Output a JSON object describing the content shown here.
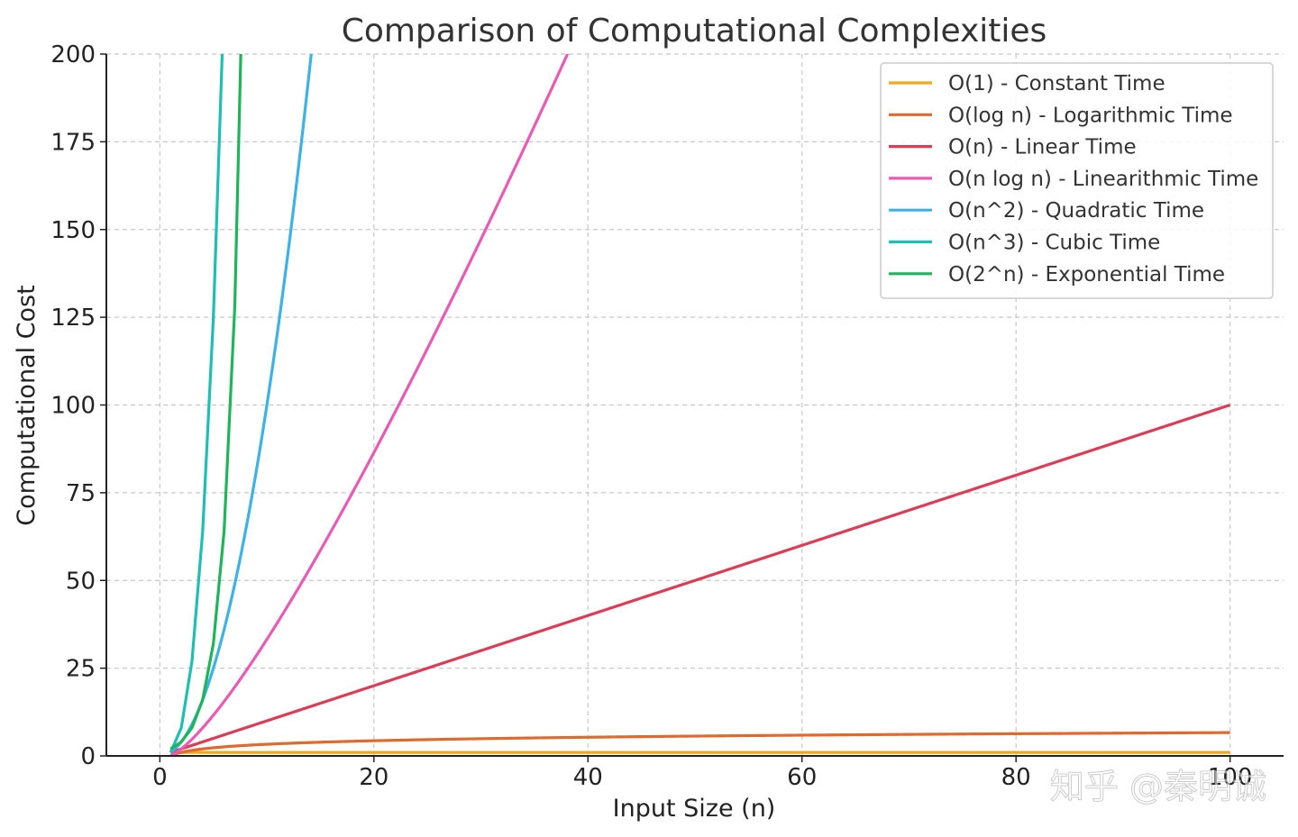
{
  "chart_data": {
    "type": "line",
    "title": "Comparison of Computational Complexities",
    "xlabel": "Input Size (n)",
    "ylabel": "Computational Cost",
    "xlim": [
      -5,
      105
    ],
    "ylim": [
      0,
      200
    ],
    "xticks": [
      0,
      20,
      40,
      60,
      80,
      100
    ],
    "yticks": [
      0,
      25,
      50,
      75,
      100,
      125,
      150,
      175,
      200
    ],
    "grid": true,
    "legend_position": "top-right",
    "series": [
      {
        "name": "O(1) - Constant Time",
        "color": "#f0a81e",
        "func": "constant"
      },
      {
        "name": "O(log n) - Logarithmic Time",
        "color": "#e06a2e",
        "func": "log"
      },
      {
        "name": "O(n) - Linear Time",
        "color": "#dc3c55",
        "func": "linear"
      },
      {
        "name": "O(n log n) - Linearithmic Time",
        "color": "#ea5ab4",
        "func": "nlogn"
      },
      {
        "name": "O(n^2) - Quadratic Time",
        "color": "#3cb2e6",
        "func": "quadratic"
      },
      {
        "name": "O(n^3) - Cubic Time",
        "color": "#1ebeb4",
        "func": "cubic"
      },
      {
        "name": "O(2^n) - Exponential Time",
        "color": "#1eb45a",
        "func": "exponential"
      }
    ],
    "x_domain": [
      1,
      100
    ]
  },
  "watermark": "知乎 @秦明诚"
}
